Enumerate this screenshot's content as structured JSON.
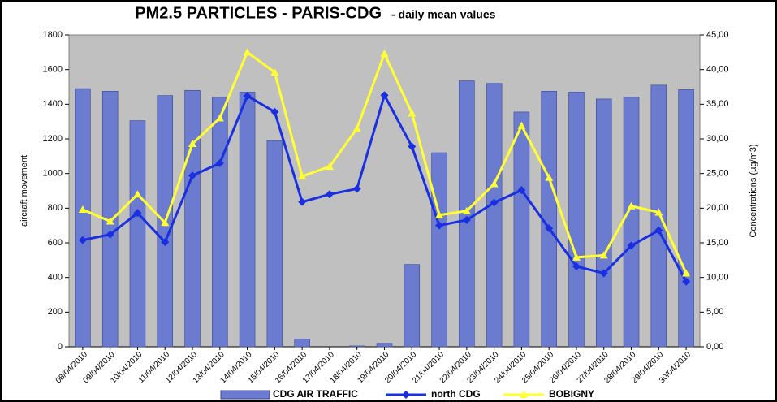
{
  "chart_data": {
    "type": "bar_line",
    "title": "PM2.5 PARTICLES  -  PARIS-CDG",
    "subtitle": "- daily mean values",
    "y_label": "aircraft  movement",
    "y2_label": "Concentrations (µg/m3)",
    "categories": [
      "08/04/2010",
      "09/04/2010",
      "10/04/2010",
      "11/04/2010",
      "12/04/2010",
      "13/04/2010",
      "14/04/2010",
      "15/04/2010",
      "16/04/2010",
      "17/04/2010",
      "18/04/2010",
      "19/04/2010",
      "20/04/2010",
      "21/04/2010",
      "22/04/2010",
      "23/04/2010",
      "24/04/2010",
      "25/04/2010",
      "26/04/2010",
      "27/04/2010",
      "28/04/2010",
      "29/04/2010",
      "30/04/2010"
    ],
    "series": [
      {
        "name": "CDG AIR TRAFFIC",
        "type": "bar",
        "color": "#6a7bd0",
        "values": [
          1490,
          1475,
          1305,
          1450,
          1480,
          1440,
          1470,
          1190,
          45,
          0,
          5,
          20,
          475,
          1120,
          1535,
          1520,
          1355,
          1475,
          1470,
          1430,
          1440,
          1510,
          1485
        ]
      },
      {
        "name": "north CDG",
        "type": "line",
        "marker": "diamond",
        "axis": "y2",
        "color": "#1a2fe0",
        "values": [
          15.4,
          16.2,
          19.3,
          15.1,
          24.7,
          26.5,
          36.2,
          33.9,
          20.9,
          22.0,
          22.8,
          36.3,
          28.9,
          17.5,
          18.3,
          20.8,
          22.6,
          17.1,
          11.6,
          10.6,
          14.6,
          16.8,
          9.4
        ]
      },
      {
        "name": "BOBIGNY",
        "type": "line",
        "marker": "triangle",
        "axis": "y2",
        "color": "#ffff33",
        "values": [
          19.8,
          18.1,
          22.0,
          17.9,
          29.3,
          33.0,
          42.5,
          39.6,
          24.6,
          26.0,
          31.5,
          42.3,
          33.7,
          19.0,
          19.6,
          23.5,
          31.9,
          24.4,
          12.9,
          13.2,
          20.3,
          19.4,
          10.6
        ]
      }
    ],
    "ylim": [
      0,
      1800
    ],
    "yticks": [
      0,
      200,
      400,
      600,
      800,
      1000,
      1200,
      1400,
      1600,
      1800
    ],
    "y2lim": [
      0,
      45
    ],
    "y2ticks": [
      {
        "value": 0,
        "label": "0,00"
      },
      {
        "value": 5,
        "label": "5,00"
      },
      {
        "value": 10,
        "label": "10,00"
      },
      {
        "value": 15,
        "label": "15,00"
      },
      {
        "value": 20,
        "label": "20,00"
      },
      {
        "value": 25,
        "label": "25,00"
      },
      {
        "value": 30,
        "label": "30,00"
      },
      {
        "value": 35,
        "label": "35,00"
      },
      {
        "value": 40,
        "label": "40,00"
      },
      {
        "value": 45,
        "label": "45,00"
      }
    ],
    "plot_background": "#c0c0c0",
    "grid": false,
    "legend": "bottom"
  }
}
